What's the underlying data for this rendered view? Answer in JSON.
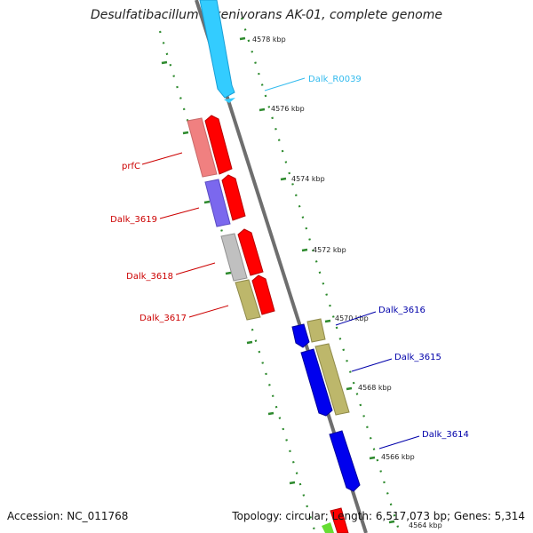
{
  "title": "Desulfatibacillum alkenivorans AK-01, complete genome",
  "footer": {
    "accession": "Accession: NC_011768",
    "summary": "Topology: circular; Length: 6,517,073 bp; Genes: 5,314"
  },
  "colors": {
    "backbone": "#808080",
    "dots": "#2d8a2d",
    "forward_label": "#cc0000",
    "reverse_label": "#0000aa",
    "rrna_label": "#33bbee"
  },
  "ticks": [
    {
      "label": "4578 kbp"
    },
    {
      "label": "4576 kbp"
    },
    {
      "label": "4574 kbp"
    },
    {
      "label": "4572 kbp"
    },
    {
      "label": "4570 kbp"
    },
    {
      "label": "4568 kbp"
    },
    {
      "label": "4566 kbp"
    },
    {
      "label": "4564 kbp"
    }
  ],
  "labels": {
    "dalk_r0039": "Dalk_R0039",
    "prfc": "prfC",
    "dalk_3619": "Dalk_3619",
    "dalk_3618": "Dalk_3618",
    "dalk_3617": "Dalk_3617",
    "dalk_3616": "Dalk_3616",
    "dalk_3615": "Dalk_3615",
    "dalk_3614": "Dalk_3614"
  }
}
